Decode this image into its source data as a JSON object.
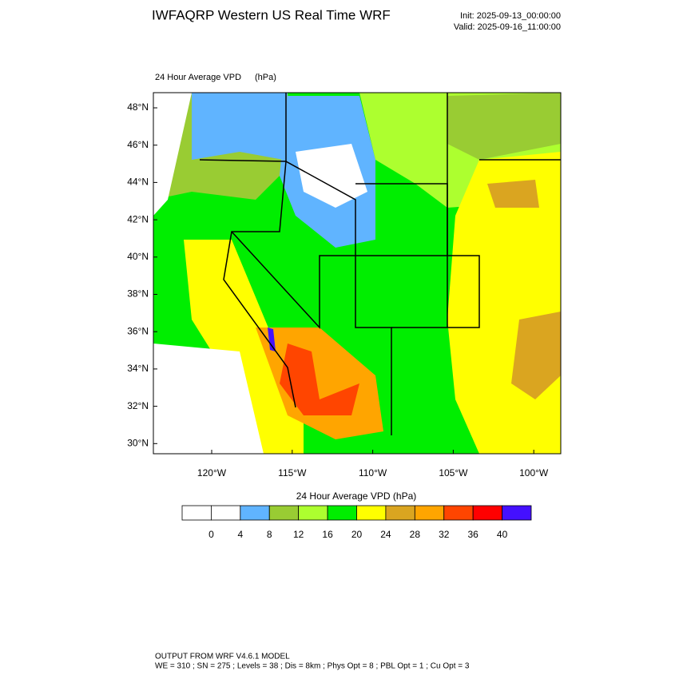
{
  "header": {
    "title": "IWFAQRP Western US Real Time WRF",
    "init": "Init: 2025-09-13_00:00:00",
    "valid": "Valid: 2025-09-16_11:00:00"
  },
  "map": {
    "title": "24 Hour Average VPD",
    "units": "(hPa)",
    "lat_labels": [
      "48°N",
      "46°N",
      "44°N",
      "42°N",
      "40°N",
      "38°N",
      "36°N",
      "34°N",
      "32°N",
      "30°N"
    ],
    "lon_labels": [
      "120°W",
      "115°W",
      "110°W",
      "105°W",
      "100°W"
    ]
  },
  "colorbar": {
    "title": "24 Hour Average VPD  (hPa)",
    "levels": [
      0,
      4,
      8,
      12,
      16,
      20,
      24,
      28,
      32,
      36,
      40
    ],
    "colors": [
      "#ffffff",
      "#ffffff",
      "#60b4ff",
      "#99cc33",
      "#adff2f",
      "#00ee00",
      "#ffff00",
      "#daa520",
      "#ffa500",
      "#ff4500",
      "#ff0000",
      "#4410ff"
    ]
  },
  "footer": {
    "line1": "OUTPUT FROM WRF V4.6.1 MODEL",
    "line2": "WE = 310 ; SN = 275 ; Levels = 38 ; Dis = 8km ; Phys Opt = 8 ; PBL Opt = 1 ; Cu Opt = 3"
  }
}
